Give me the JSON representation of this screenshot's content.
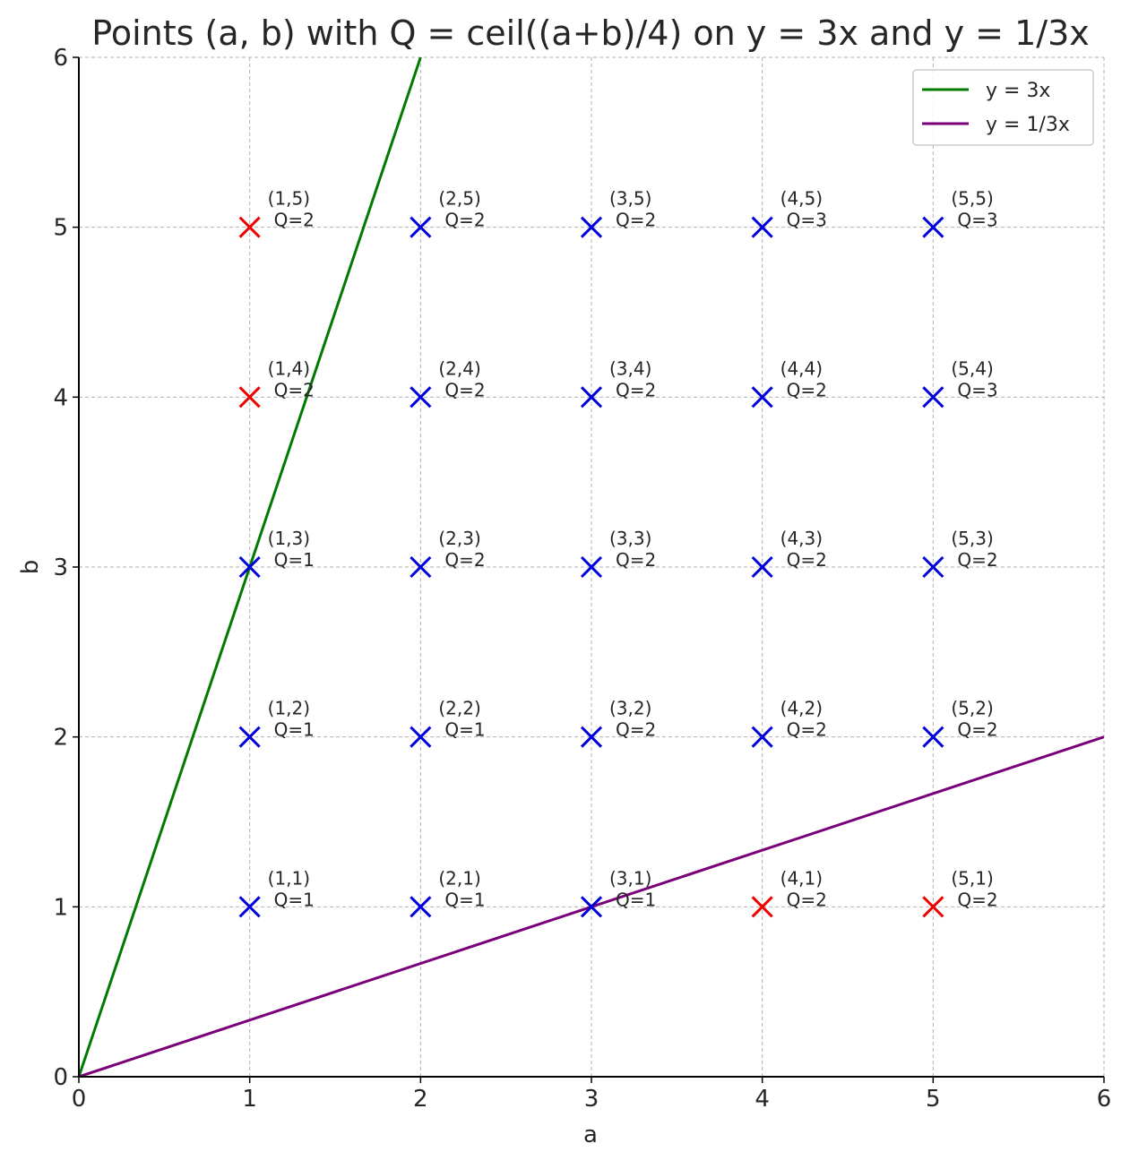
{
  "chart_data": {
    "type": "scatter",
    "title": "Points (a, b) with Q = ceil((a+b)/4) on y = 3x and y = 1/3x",
    "xlabel": "a",
    "ylabel": "b",
    "xlim": [
      0,
      6
    ],
    "ylim": [
      0,
      6
    ],
    "xticks": [
      "0",
      "1",
      "2",
      "3",
      "4",
      "5",
      "6"
    ],
    "yticks": [
      "0",
      "1",
      "2",
      "3",
      "4",
      "5",
      "6"
    ],
    "grid": true,
    "legend_position": "top-right",
    "lines": [
      {
        "name": "y = 3x",
        "slope": 3,
        "color": "#007a00"
      },
      {
        "name": "y = 1/3x",
        "slope": 0.3333333333,
        "color": "#7a007a"
      }
    ],
    "marker_colors": {
      "default": "#0000dd",
      "highlight": "#ee0000"
    },
    "points": [
      {
        "a": 1,
        "b": 1,
        "label": "(1,1)",
        "q_label": "Q=1",
        "highlight": false
      },
      {
        "a": 1,
        "b": 2,
        "label": "(1,2)",
        "q_label": "Q=1",
        "highlight": false
      },
      {
        "a": 1,
        "b": 3,
        "label": "(1,3)",
        "q_label": "Q=1",
        "highlight": false
      },
      {
        "a": 1,
        "b": 4,
        "label": "(1,4)",
        "q_label": "Q=2",
        "highlight": true
      },
      {
        "a": 1,
        "b": 5,
        "label": "(1,5)",
        "q_label": "Q=2",
        "highlight": true
      },
      {
        "a": 2,
        "b": 1,
        "label": "(2,1)",
        "q_label": "Q=1",
        "highlight": false
      },
      {
        "a": 2,
        "b": 2,
        "label": "(2,2)",
        "q_label": "Q=1",
        "highlight": false
      },
      {
        "a": 2,
        "b": 3,
        "label": "(2,3)",
        "q_label": "Q=2",
        "highlight": false
      },
      {
        "a": 2,
        "b": 4,
        "label": "(2,4)",
        "q_label": "Q=2",
        "highlight": false
      },
      {
        "a": 2,
        "b": 5,
        "label": "(2,5)",
        "q_label": "Q=2",
        "highlight": false
      },
      {
        "a": 3,
        "b": 1,
        "label": "(3,1)",
        "q_label": "Q=1",
        "highlight": false
      },
      {
        "a": 3,
        "b": 2,
        "label": "(3,2)",
        "q_label": "Q=2",
        "highlight": false
      },
      {
        "a": 3,
        "b": 3,
        "label": "(3,3)",
        "q_label": "Q=2",
        "highlight": false
      },
      {
        "a": 3,
        "b": 4,
        "label": "(3,4)",
        "q_label": "Q=2",
        "highlight": false
      },
      {
        "a": 3,
        "b": 5,
        "label": "(3,5)",
        "q_label": "Q=2",
        "highlight": false
      },
      {
        "a": 4,
        "b": 1,
        "label": "(4,1)",
        "q_label": "Q=2",
        "highlight": true
      },
      {
        "a": 4,
        "b": 2,
        "label": "(4,2)",
        "q_label": "Q=2",
        "highlight": false
      },
      {
        "a": 4,
        "b": 3,
        "label": "(4,3)",
        "q_label": "Q=2",
        "highlight": false
      },
      {
        "a": 4,
        "b": 4,
        "label": "(4,4)",
        "q_label": "Q=2",
        "highlight": false
      },
      {
        "a": 4,
        "b": 5,
        "label": "(4,5)",
        "q_label": "Q=3",
        "highlight": false
      },
      {
        "a": 5,
        "b": 1,
        "label": "(5,1)",
        "q_label": "Q=2",
        "highlight": true
      },
      {
        "a": 5,
        "b": 2,
        "label": "(5,2)",
        "q_label": "Q=2",
        "highlight": false
      },
      {
        "a": 5,
        "b": 3,
        "label": "(5,3)",
        "q_label": "Q=2",
        "highlight": false
      },
      {
        "a": 5,
        "b": 4,
        "label": "(5,4)",
        "q_label": "Q=3",
        "highlight": false
      },
      {
        "a": 5,
        "b": 5,
        "label": "(5,5)",
        "q_label": "Q=3",
        "highlight": false
      }
    ]
  }
}
